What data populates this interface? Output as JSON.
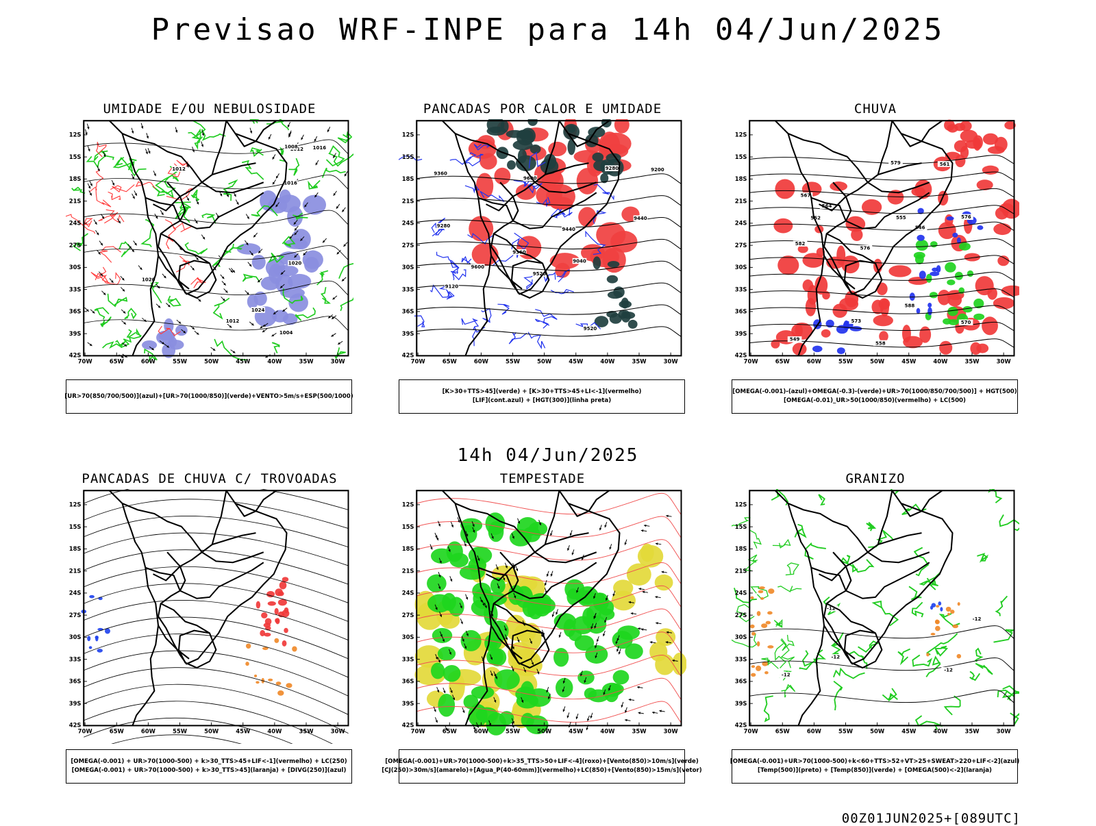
{
  "title": "Previsao WRF-INPE  para 14h 04/Jun/2025",
  "mid_title": "14h 04/Jun/2025",
  "footer": "00Z01JUN2025+[089UTC]",
  "axes": {
    "lat_labels": [
      "12S",
      "15S",
      "18S",
      "21S",
      "24S",
      "27S",
      "30S",
      "33S",
      "36S",
      "39S",
      "42S"
    ],
    "lon_labels": [
      "70W",
      "65W",
      "60W",
      "55W",
      "50W",
      "45W",
      "40W",
      "35W",
      "30W"
    ]
  },
  "panels": [
    {
      "title": "UMIDADE E/OU NEBULOSIDADE",
      "legend": [
        "[UR>70(850/700/500)](azul)+[UR>70(1000/850)](verde)+VENTO>5m/s+ESP(500/1000)"
      ],
      "contour_labels": [
        "1012",
        "1012",
        "1016",
        "1020",
        "1016",
        "1012",
        "1008",
        "1004",
        "1024",
        "1020"
      ],
      "colors": {
        "blue": "#8a8ee0",
        "green": "#22cc22",
        "red": "#ff3b3b"
      }
    },
    {
      "title": "PANCADAS POR CALOR E UMIDADE",
      "legend": [
        "[K>30+TTS>45](verde) + [K>30+TTS>45+LI<-1](vermelho)",
        "[LIF](cont.azul) + [HGT(300)](linha preta)"
      ],
      "contour_labels": [
        "9600",
        "9600",
        "9520",
        "9440",
        "9360",
        "9280",
        "9200",
        "9120",
        "9040",
        "9520",
        "9440",
        "9360",
        "9280"
      ],
      "colors": {
        "dark": "#1f3f3f",
        "red": "#f04040",
        "blue": "#2233ee"
      }
    },
    {
      "title": "CHUVA",
      "legend": [
        "[OMEGA(-0.001)-(azul)+OMEGA(-0.3)-(verde)+UR>70(1000/850/700/500)] + HGT(500)",
        "[OMEGA(-0.01)_UR>50(1000/850)(vermelho) + LC(500)"
      ],
      "contour_labels": [
        "588",
        "582",
        "576",
        "573",
        "570",
        "567",
        "564",
        "561",
        "558",
        "555",
        "552",
        "549",
        "546",
        "579",
        "576"
      ],
      "colors": {
        "red": "#f03a3a",
        "green": "#1fd31f",
        "blue": "#2233ee"
      }
    },
    {
      "title": "PANCADAS DE CHUVA C/ TROVOADAS",
      "legend": [
        "[OMEGA(-0.001) + UR>70(1000-500) + k>30_TTS>45+LIF<-1](vermelho) + LC(250)",
        "[OMEGA(-0.001) + UR>70(1000-500) + k>30_TTS>45](laranja) + [DIVG(250)](azul)"
      ],
      "contour_labels": [],
      "colors": {
        "red": "#f03a3a",
        "orange": "#f08a2a",
        "blue": "#2244ee"
      }
    },
    {
      "title": "TEMPESTADE",
      "legend": [
        "[OMEGA(-0.001)+UR>70(1000-500)+k>35_TTS>50+LIF<-4](roxo)+[Vento(850)>10m/s](verde)",
        "[CJ(250)>30m/s](amarelo)+[Agua_P(40-60mm)](vermelho)+LC(850)+[Vento(850)>15m/s](vetor)"
      ],
      "contour_labels": [],
      "colors": {
        "yellow": "#e3d93a",
        "green": "#1ed61e",
        "red": "#f05050"
      }
    },
    {
      "title": "GRANIZO",
      "legend": [
        "[OMEGA(-0.001)+UR>70(1000-500)+k<60+TTS>52+VT>25+SWEAT>220+LIF<-2](azul)",
        "[Temp(500)](preto) + [Temp(850)](verde) + [OMEGA(500)<-2](laranja)"
      ],
      "contour_labels": [
        "-12",
        "-12",
        "-12",
        "-12",
        "-12"
      ],
      "colors": {
        "green": "#22cc22",
        "orange": "#f08a2a",
        "blue": "#2244ee"
      }
    }
  ]
}
